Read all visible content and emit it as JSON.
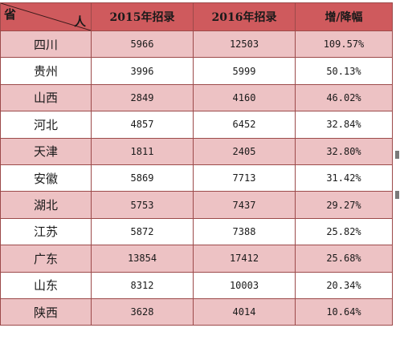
{
  "header": {
    "corner_left": "省",
    "corner_right": "人",
    "col_2015": "2015年招录",
    "col_2016": "2016年招录",
    "col_change": "增/降幅"
  },
  "rows": [
    {
      "province": "四川",
      "y2015": "5966",
      "y2016": "12503",
      "change": "109.57%"
    },
    {
      "province": "贵州",
      "y2015": "3996",
      "y2016": "5999",
      "change": "50.13%"
    },
    {
      "province": "山西",
      "y2015": "2849",
      "y2016": "4160",
      "change": "46.02%"
    },
    {
      "province": "河北",
      "y2015": "4857",
      "y2016": "6452",
      "change": "32.84%"
    },
    {
      "province": "天津",
      "y2015": "1811",
      "y2016": "2405",
      "change": "32.80%"
    },
    {
      "province": "安徽",
      "y2015": "5869",
      "y2016": "7713",
      "change": "31.42%"
    },
    {
      "province": "湖北",
      "y2015": "5753",
      "y2016": "7437",
      "change": "29.27%"
    },
    {
      "province": "江苏",
      "y2015": "5872",
      "y2016": "7388",
      "change": "25.82%"
    },
    {
      "province": "广东",
      "y2015": "13854",
      "y2016": "17412",
      "change": "25.68%"
    },
    {
      "province": "山东",
      "y2015": "8312",
      "y2016": "10003",
      "change": "20.34%"
    },
    {
      "province": "陕西",
      "y2015": "3628",
      "y2016": "4014",
      "change": "10.64%"
    }
  ],
  "colors": {
    "header_bg": "#cf5a5d",
    "shaded_row_bg": "#edc2c4",
    "plain_row_bg": "#ffffff",
    "border": "#9c4a4a"
  }
}
